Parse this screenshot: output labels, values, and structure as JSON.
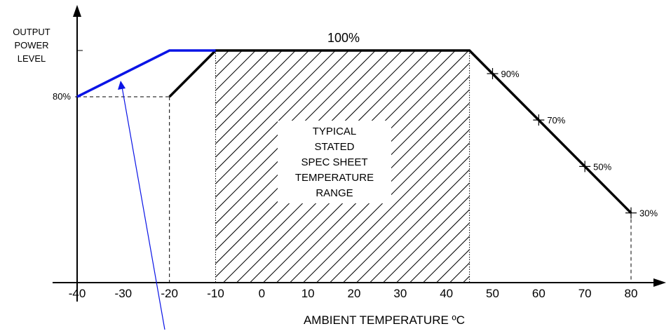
{
  "chart_data": {
    "type": "line",
    "ylabel_lines": [
      "OUTPUT",
      "POWER",
      "LEVEL"
    ],
    "xlabel": "AMBIENT TEMPERATURE ºC",
    "x_ticks": [
      -40,
      -30,
      -20,
      -10,
      0,
      10,
      20,
      30,
      40,
      50,
      60,
      70,
      80
    ],
    "xlim": [
      -40,
      80
    ],
    "ylim": [
      0,
      100
    ],
    "series": [
      {
        "color": "#000000",
        "x": [
          -20,
          -20,
          -10,
          45,
          80
        ],
        "y": [
          80,
          80,
          100,
          100,
          30
        ]
      },
      {
        "color": "#0a14e6",
        "x": [
          -40,
          -20,
          -10
        ],
        "y": [
          80,
          100,
          100
        ]
      }
    ],
    "markers": [
      {
        "x": 50,
        "y": 90,
        "label": "90%"
      },
      {
        "x": 60,
        "y": 70,
        "label": "70%"
      },
      {
        "x": 70,
        "y": 50,
        "label": "50%"
      },
      {
        "x": 80,
        "y": 30,
        "label": "30%"
      }
    ],
    "annotations": {
      "top_label": "100%",
      "left_label": "80%",
      "region_x": [
        -10,
        45
      ],
      "region_text": [
        "TYPICAL",
        "STATED",
        "SPEC SHEET",
        "TEMPERATURE",
        "RANGE"
      ]
    },
    "grid": false,
    "legend": "none"
  }
}
